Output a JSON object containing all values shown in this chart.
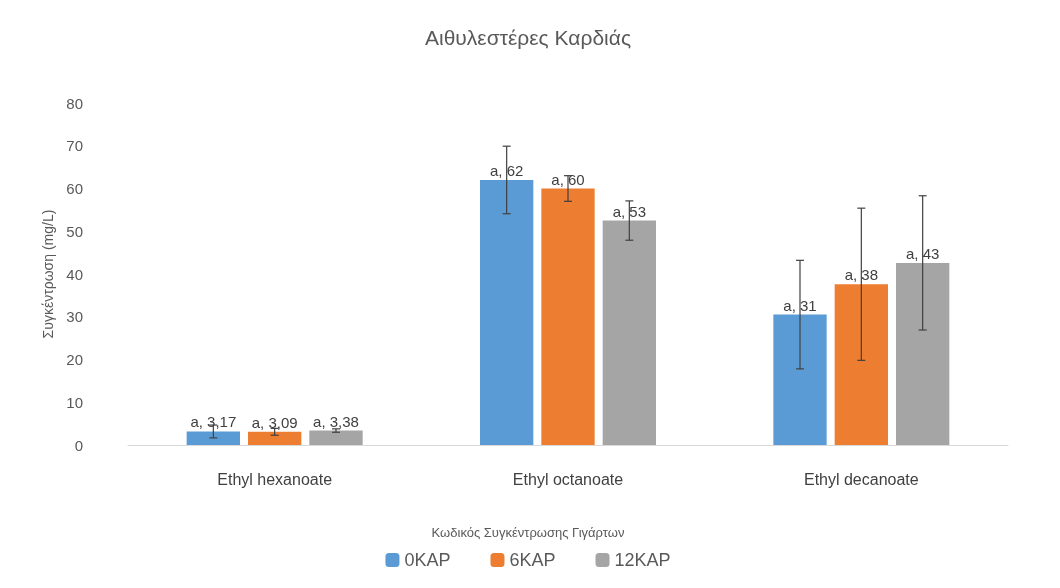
{
  "chart_data": {
    "type": "bar",
    "title": "Αιθυλεστέρες Καρδιάς",
    "ylabel": "Συγκέντρωση (mg/L)",
    "legend_title": "Κωδικός Συγκέντρωσης Γιγάρτων",
    "categories": [
      "Ethyl hexanoate",
      "Ethyl octanoate",
      "Ethyl decanoate"
    ],
    "series": [
      {
        "name": "0KAP",
        "color": "#5b9bd5",
        "values": [
          3.17,
          62,
          30.5
        ],
        "errors": [
          1.5,
          7.9,
          12.7
        ],
        "value_labels": [
          "a, 3,17",
          "a, 62",
          "a, 31"
        ]
      },
      {
        "name": "6KAP",
        "color": "#ed7d31",
        "values": [
          3.09,
          60,
          37.6
        ],
        "errors": [
          0.8,
          3,
          17.8
        ],
        "value_labels": [
          "a, 3,09",
          "a, 60",
          "a, 38"
        ]
      },
      {
        "name": "12KAP",
        "color": "#a5a5a5",
        "values": [
          3.38,
          52.5,
          42.6
        ],
        "errors": [
          0.4,
          4.6,
          15.7
        ],
        "value_labels": [
          "a, 3,38",
          "a, 53",
          "a, 43"
        ]
      }
    ],
    "ylim": [
      0,
      80
    ],
    "yticks": [
      0,
      10,
      20,
      30,
      40,
      50,
      60,
      70,
      80
    ],
    "grid": false,
    "legend": "bottom"
  }
}
